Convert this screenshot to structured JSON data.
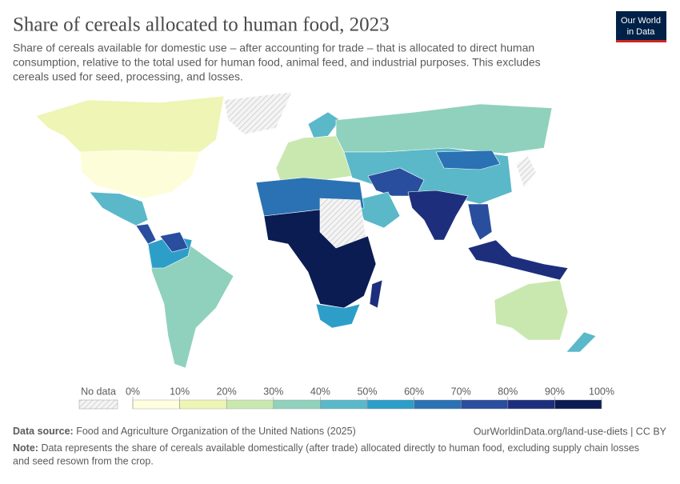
{
  "header": {
    "title": "Share of cereals allocated to human food, 2023",
    "subtitle": [
      "Share of cereals available for domestic use – after accounting for trade – that is allocated to direct human",
      "consumption, relative to the total used for human food, animal feed, and industrial purposes. This excludes",
      "cereals used for seed, processing, and losses."
    ],
    "logo": [
      "Our World",
      "in Data"
    ]
  },
  "legend": {
    "no_data": "No data",
    "ticks": [
      "0%",
      "10%",
      "20%",
      "30%",
      "40%",
      "50%",
      "60%",
      "70%",
      "80%",
      "90%",
      "100%"
    ],
    "colors": [
      "#ffffe0",
      "#eef5b5",
      "#c9e8b0",
      "#8fd1bc",
      "#5ab8c9",
      "#2d9ec8",
      "#2a72b3",
      "#2a4e9e",
      "#1d2f7c",
      "#0a1c52"
    ]
  },
  "footer": {
    "source_label": "Data source:",
    "source": "Food and Agriculture Organization of the United Nations (2025)",
    "url": "OurWorldinData.org/land-use-diets | CC BY",
    "note_label": "Note:",
    "note": [
      "Data represents the share of cereals available domestically (after trade) allocated directly to human food, excluding supply chain losses",
      "and seed resown from the crop."
    ]
  }
}
